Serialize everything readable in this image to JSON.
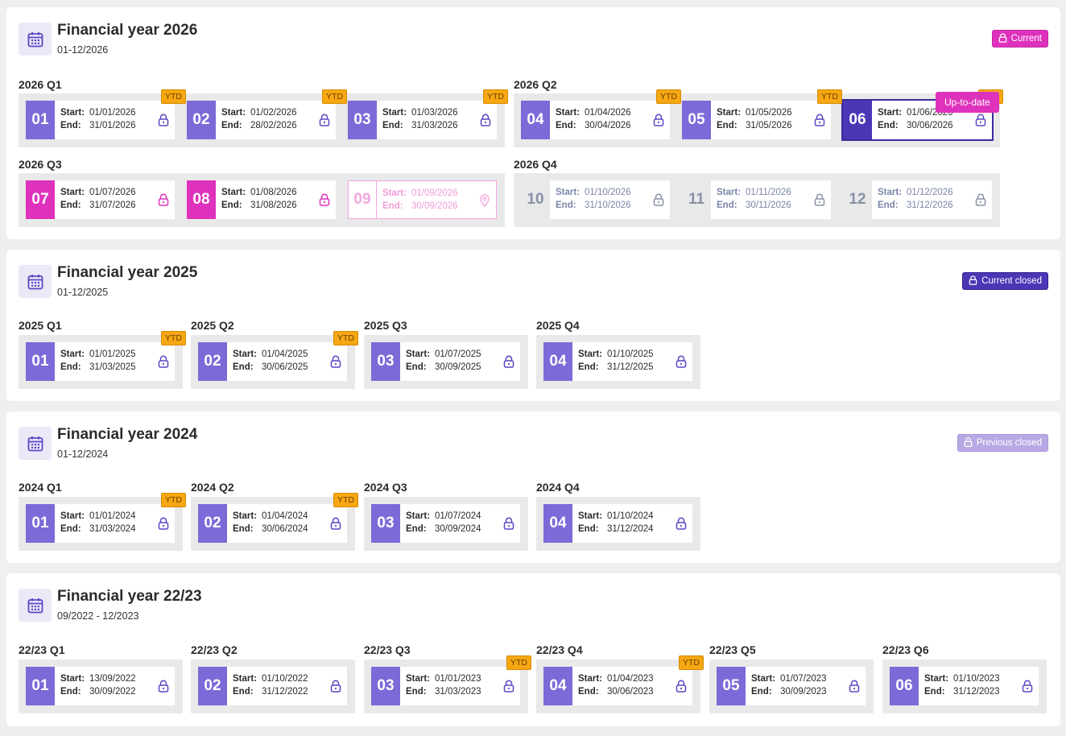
{
  "years": [
    {
      "title": "Financial year 2026",
      "subtitle": "01-12/2026",
      "badge": {
        "label": "Current",
        "style": "current"
      },
      "tooltip": "Up-to-date",
      "quarters": [
        {
          "label": "2026 Q1",
          "months": [
            {
              "num": "01",
              "start": "01/01/2026",
              "end": "31/01/2026",
              "ytd": "YTD"
            },
            {
              "num": "02",
              "start": "01/02/2026",
              "end": "28/02/2026",
              "ytd": "YTD"
            },
            {
              "num": "03",
              "start": "01/03/2026",
              "end": "31/03/2026",
              "ytd": "YTD"
            }
          ]
        },
        {
          "label": "2026 Q2",
          "months": [
            {
              "num": "04",
              "start": "01/04/2026",
              "end": "30/04/2026",
              "ytd": "YTD"
            },
            {
              "num": "05",
              "start": "01/05/2026",
              "end": "31/05/2026",
              "ytd": "YTD"
            },
            {
              "num": "06",
              "start": "01/06/2026",
              "end": "30/06/2026",
              "ytd": "YTD",
              "state": "select"
            }
          ]
        },
        {
          "label": "2026 Q3",
          "months": [
            {
              "num": "07",
              "start": "01/07/2026",
              "end": "31/07/2026",
              "state": "magenta"
            },
            {
              "num": "08",
              "start": "01/08/2026",
              "end": "31/08/2026",
              "state": "magenta"
            },
            {
              "num": "09",
              "start": "01/09/2026",
              "end": "30/09/2026",
              "state": "future"
            }
          ]
        },
        {
          "label": "2026 Q4",
          "months": [
            {
              "num": "10",
              "start": "01/10/2026",
              "end": "31/10/2026",
              "state": "grey"
            },
            {
              "num": "11",
              "start": "01/11/2026",
              "end": "30/11/2026",
              "state": "grey"
            },
            {
              "num": "12",
              "start": "01/12/2026",
              "end": "31/12/2026",
              "state": "grey"
            }
          ]
        }
      ]
    },
    {
      "title": "Financial year 2025",
      "subtitle": "01-12/2025",
      "badge": {
        "label": "Current closed",
        "style": "cclosed"
      },
      "quarters": [
        {
          "label": "2025 Q1",
          "months": [
            {
              "num": "01",
              "start": "01/01/2025",
              "end": "31/03/2025",
              "ytd": "YTD"
            }
          ]
        },
        {
          "label": "2025 Q2",
          "months": [
            {
              "num": "02",
              "start": "01/04/2025",
              "end": "30/06/2025",
              "ytd": "YTD"
            }
          ]
        },
        {
          "label": "2025 Q3",
          "months": [
            {
              "num": "03",
              "start": "01/07/2025",
              "end": "30/09/2025"
            }
          ]
        },
        {
          "label": "2025 Q4",
          "months": [
            {
              "num": "04",
              "start": "01/10/2025",
              "end": "31/12/2025"
            }
          ]
        }
      ]
    },
    {
      "title": "Financial year 2024",
      "subtitle": "01-12/2024",
      "badge": {
        "label": "Previous closed",
        "style": "pclosed"
      },
      "quarters": [
        {
          "label": "2024 Q1",
          "months": [
            {
              "num": "01",
              "start": "01/01/2024",
              "end": "31/03/2024",
              "ytd": "YTD"
            }
          ]
        },
        {
          "label": "2024 Q2",
          "months": [
            {
              "num": "02",
              "start": "01/04/2024",
              "end": "30/06/2024",
              "ytd": "YTD"
            }
          ]
        },
        {
          "label": "2024 Q3",
          "months": [
            {
              "num": "03",
              "start": "01/07/2024",
              "end": "30/09/2024"
            }
          ]
        },
        {
          "label": "2024 Q4",
          "months": [
            {
              "num": "04",
              "start": "01/10/2024",
              "end": "31/12/2024"
            }
          ]
        }
      ]
    },
    {
      "title": "Financial year 22/23",
      "subtitle": "09/2022 - 12/2023",
      "quarters": [
        {
          "label": "22/23 Q1",
          "months": [
            {
              "num": "01",
              "start": "13/09/2022",
              "end": "30/09/2022"
            }
          ]
        },
        {
          "label": "22/23 Q2",
          "months": [
            {
              "num": "02",
              "start": "01/10/2022",
              "end": "31/12/2022"
            }
          ]
        },
        {
          "label": "22/23 Q3",
          "months": [
            {
              "num": "03",
              "start": "01/01/2023",
              "end": "31/03/2023",
              "ytd": "YTD"
            }
          ]
        },
        {
          "label": "22/23 Q4",
          "months": [
            {
              "num": "04",
              "start": "01/04/2023",
              "end": "30/06/2023",
              "ytd": "YTD"
            }
          ]
        },
        {
          "label": "22/23 Q5",
          "months": [
            {
              "num": "05",
              "start": "01/07/2023",
              "end": "30/09/2023"
            }
          ]
        },
        {
          "label": "22/23 Q6",
          "months": [
            {
              "num": "06",
              "start": "01/10/2023",
              "end": "31/12/2023"
            }
          ]
        }
      ]
    }
  ],
  "labels": {
    "start": "Start:",
    "end": "End:"
  },
  "colors": {
    "accent": "#7c6ad8",
    "selected": "#4b36b6",
    "magenta": "#de32bc",
    "ytd": "#f6a712"
  }
}
